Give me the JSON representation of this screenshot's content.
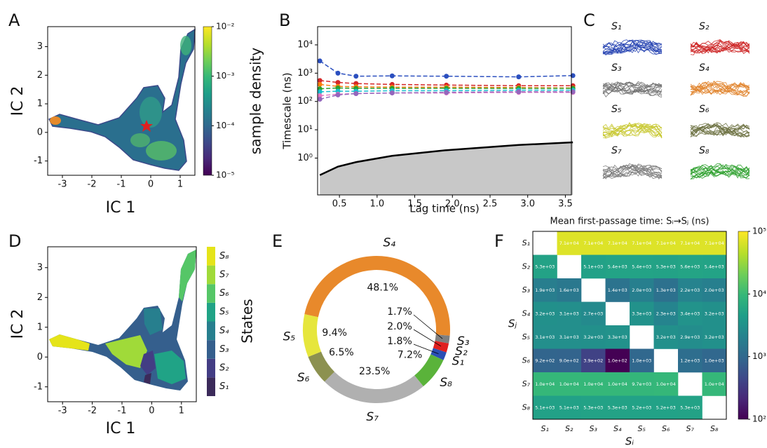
{
  "chart_data": [
    {
      "panel": "A",
      "type": "density-map",
      "xlabel": "IC 1",
      "ylabel": "IC 2",
      "xlim": [
        -3.5,
        1.5
      ],
      "ylim": [
        -1.5,
        3.7
      ],
      "xticks": [
        -3,
        -2,
        -1,
        0,
        1
      ],
      "yticks": [
        -1,
        0,
        1,
        2,
        3
      ],
      "colorbar_label": "sample density",
      "clim": [
        1e-05,
        0.01
      ],
      "clog": true,
      "cticks": [
        {
          "value": 1e-05,
          "label": "10⁻⁵"
        },
        {
          "value": 0.0001,
          "label": "10⁻⁴"
        },
        {
          "value": 0.001,
          "label": "10⁻³"
        },
        {
          "value": 0.01,
          "label": "10⁻²"
        }
      ]
    },
    {
      "panel": "B",
      "type": "line",
      "xlabel": "Lag time (ns)",
      "ylabel": "Timescale (ns)",
      "xlim": [
        0.21,
        3.58
      ],
      "ylim": [
        0.05,
        44000
      ],
      "ylog": true,
      "xticks": [
        0.5,
        {
          "value": 1,
          "label": "1.0"
        },
        1.5,
        {
          "value": 2,
          "label": "2.0"
        },
        2.5,
        {
          "value": 3,
          "label": "3.0"
        },
        3.5
      ],
      "yticks": [
        {
          "value": 1,
          "label": "10⁰"
        },
        {
          "value": 10,
          "label": "10¹"
        },
        {
          "value": 100,
          "label": "10²"
        },
        {
          "value": 1000,
          "label": "10³"
        },
        {
          "value": 10000,
          "label": "10⁴"
        }
      ],
      "x": [
        0.24,
        0.48,
        0.72,
        1.2,
        1.92,
        2.88,
        3.6
      ],
      "series": [
        {
          "color": "#2b4fbf",
          "dashed": true,
          "values": [
            2700,
            1000,
            780,
            800,
            780,
            740,
            820
          ]
        },
        {
          "color": "#d62728",
          "dashed": true,
          "values": [
            550,
            470,
            430,
            400,
            380,
            360,
            360
          ]
        },
        {
          "color": "#ff7f0e",
          "dashed": true,
          "values": [
            400,
            340,
            330,
            320,
            320,
            310,
            300
          ]
        },
        {
          "color": "#2ca02c",
          "dashed": true,
          "values": [
            280,
            300,
            290,
            290,
            290,
            290,
            290
          ]
        },
        {
          "color": "#17becf",
          "dashed": true,
          "values": [
            220,
            230,
            230,
            240,
            240,
            250,
            250
          ]
        },
        {
          "color": "#e377c2",
          "dashed": true,
          "values": [
            160,
            180,
            190,
            200,
            200,
            210,
            210
          ]
        },
        {
          "color": "#9467bd",
          "dashed": true,
          "values": [
            120,
            170,
            190,
            200,
            210,
            220,
            220
          ]
        },
        {
          "color": "#000000",
          "dashed": false,
          "fill": "#c8c8c8",
          "values": [
            0.25,
            0.5,
            0.72,
            1.2,
            1.9,
            2.9,
            3.6
          ]
        }
      ]
    },
    {
      "panel": "C",
      "type": "image-grid",
      "labels": [
        "S₁",
        "S₂",
        "S₃",
        "S₄",
        "S₅",
        "S₆",
        "S₇",
        "S₈"
      ],
      "colors": [
        "#2240b0",
        "#cc2222",
        "#707070",
        "#e0832a",
        "#c8c830",
        "#6b7040",
        "#7a7a7a",
        "#2ea02e"
      ]
    },
    {
      "panel": "D",
      "type": "state-map",
      "xlabel": "IC 1",
      "ylabel": "IC 2",
      "xlim": [
        -3.5,
        1.5
      ],
      "ylim": [
        -1.5,
        3.7
      ],
      "xticks": [
        -3,
        -2,
        -1,
        0,
        1
      ],
      "yticks": [
        -1,
        0,
        1,
        2,
        3
      ],
      "colorbar_label": "States",
      "categories": [
        "S₁",
        "S₂",
        "S₃",
        "S₄",
        "S₅",
        "S₆",
        "S₇",
        "S₈"
      ],
      "colors": [
        "#3b2a5a",
        "#433d84",
        "#355f8d",
        "#277f8e",
        "#20a386",
        "#55c667",
        "#a0da39",
        "#e5e419"
      ]
    },
    {
      "panel": "E",
      "type": "donut",
      "categories": [
        "S₄",
        "S₃",
        "S₂",
        "S₁",
        "S₈",
        "S₇",
        "S₆",
        "S₅"
      ],
      "values": [
        48.1,
        1.7,
        2.0,
        1.8,
        7.2,
        23.5,
        6.5,
        9.4
      ],
      "value_labels": [
        "48.1%",
        "1.7%",
        "2.0%",
        "1.8%",
        "7.2%",
        "23.5%",
        "6.5%",
        "9.4%"
      ],
      "colors": [
        "#e8892b",
        "#7f7f7f",
        "#e02020",
        "#2a4fb5",
        "#5ab33a",
        "#b0b0b0",
        "#8c9150",
        "#e6e63c"
      ]
    },
    {
      "panel": "F",
      "type": "heatmap",
      "title": "Mean first-passage time: Sᵢ→Sⱼ (ns)",
      "xlabel": "Sᵢ",
      "ylabel": "Sⱼ",
      "x_categories": [
        "S₁",
        "S₂",
        "S₃",
        "S₄",
        "S₅",
        "S₆",
        "S₇",
        "S₈"
      ],
      "y_categories": [
        "S₁",
        "S₂",
        "S₃",
        "S₄",
        "S₅",
        "S₆",
        "S₇",
        "S₈"
      ],
      "clim": [
        100,
        100000
      ],
      "clog": true,
      "cticks": [
        {
          "value": 100,
          "label": "10²"
        },
        {
          "value": 1000,
          "label": "10³"
        },
        {
          "value": 10000,
          "label": "10⁴"
        },
        {
          "value": 100000,
          "label": "10⁵"
        }
      ],
      "values": [
        [
          null,
          71000,
          71000,
          71000,
          71000,
          71000,
          71000,
          71000
        ],
        [
          5300,
          null,
          5100,
          5400,
          5400,
          5300,
          5600,
          5400
        ],
        [
          1900,
          1600,
          null,
          1400,
          2000,
          1300,
          2200,
          2000
        ],
        [
          3200,
          3100,
          2700,
          null,
          3300,
          2300,
          3400,
          3200
        ],
        [
          3100,
          3100,
          3200,
          3300,
          null,
          3200,
          2900,
          3200
        ],
        [
          920,
          900,
          390,
          100,
          1000,
          null,
          1200,
          1000
        ],
        [
          10000,
          10000,
          10000,
          10000,
          9700,
          10000,
          null,
          10000
        ],
        [
          5100,
          5100,
          5300,
          5300,
          5200,
          5200,
          5300,
          null
        ]
      ],
      "value_labels": [
        [
          null,
          "7.1e+04",
          "7.1e+04",
          "7.1e+04",
          "7.1e+04",
          "7.1e+04",
          "7.1e+04",
          "7.1e+04"
        ],
        [
          "5.3e+03",
          null,
          "5.1e+03",
          "5.4e+03",
          "5.4e+03",
          "5.3e+03",
          "5.6e+03",
          "5.4e+03"
        ],
        [
          "1.9e+03",
          "1.6e+03",
          null,
          "1.4e+03",
          "2.0e+03",
          "1.3e+03",
          "2.2e+03",
          "2.0e+03"
        ],
        [
          "3.2e+03",
          "3.1e+03",
          "2.7e+03",
          null,
          "3.3e+03",
          "2.3e+03",
          "3.4e+03",
          "3.2e+03"
        ],
        [
          "3.1e+03",
          "3.1e+03",
          "3.2e+03",
          "3.3e+03",
          null,
          "3.2e+03",
          "2.9e+03",
          "3.2e+03"
        ],
        [
          "9.2e+02",
          "9.0e+02",
          "3.9e+02",
          "1.0e+02",
          "1.0e+03",
          null,
          "1.2e+03",
          "1.0e+03"
        ],
        [
          "1.0e+04",
          "1.0e+04",
          "1.0e+04",
          "1.0e+04",
          "9.7e+03",
          "1.0e+04",
          null,
          "1.0e+04"
        ],
        [
          "5.1e+03",
          "5.1e+03",
          "5.3e+03",
          "5.3e+03",
          "5.2e+03",
          "5.2e+03",
          "5.3e+03",
          null
        ]
      ]
    }
  ]
}
